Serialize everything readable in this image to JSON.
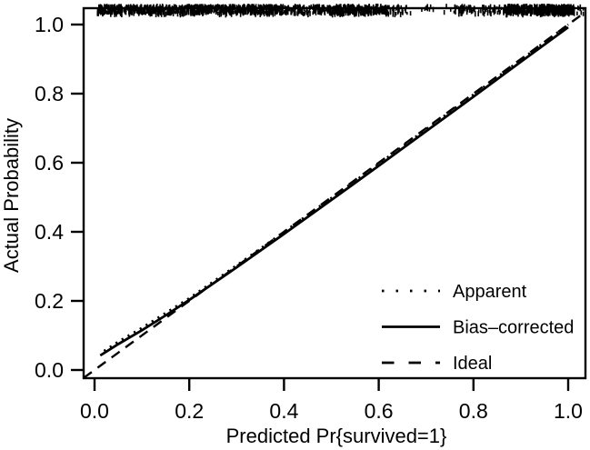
{
  "figure": {
    "background": "#ffffff",
    "ink_color": "#000000"
  },
  "chart_data": {
    "type": "line",
    "title": "",
    "xlabel": "Predicted Pr{survived=1}",
    "ylabel": "Actual Probability",
    "xlim": [
      0,
      1
    ],
    "ylim": [
      0,
      1
    ],
    "grid": false,
    "legend_position": "lower right",
    "x_ticks": [
      0.0,
      0.2,
      0.4,
      0.6,
      0.8,
      1.0
    ],
    "y_ticks": [
      0.0,
      0.2,
      0.4,
      0.6,
      0.8,
      1.0
    ],
    "x_tick_labels": [
      "0.0",
      "0.2",
      "0.4",
      "0.6",
      "0.8",
      "1.0"
    ],
    "y_tick_labels": [
      "0.0",
      "0.2",
      "0.4",
      "0.6",
      "0.8",
      "1.0"
    ],
    "series": [
      {
        "name": "Apparent",
        "style": "dotted",
        "points": [
          [
            0.02,
            0.055
          ],
          [
            0.05,
            0.082
          ],
          [
            0.1,
            0.122
          ],
          [
            0.15,
            0.165
          ],
          [
            0.2,
            0.208
          ],
          [
            0.3,
            0.303
          ],
          [
            0.4,
            0.4
          ],
          [
            0.5,
            0.498
          ],
          [
            0.6,
            0.597
          ],
          [
            0.7,
            0.697
          ],
          [
            0.8,
            0.797
          ],
          [
            0.9,
            0.898
          ],
          [
            1.0,
            1.0
          ]
        ]
      },
      {
        "name": "Bias–corrected",
        "style": "solid",
        "points": [
          [
            0.012,
            0.042
          ],
          [
            0.05,
            0.075
          ],
          [
            0.1,
            0.115
          ],
          [
            0.15,
            0.158
          ],
          [
            0.2,
            0.203
          ],
          [
            0.3,
            0.297
          ],
          [
            0.4,
            0.394
          ],
          [
            0.5,
            0.492
          ],
          [
            0.6,
            0.591
          ],
          [
            0.7,
            0.691
          ],
          [
            0.8,
            0.791
          ],
          [
            0.9,
            0.892
          ],
          [
            1.0,
            0.992
          ]
        ]
      },
      {
        "name": "Ideal",
        "style": "dashed",
        "points": [
          [
            -0.023,
            -0.023
          ],
          [
            1.036,
            1.036
          ]
        ]
      }
    ],
    "rug": {
      "description": "jittered tick marks along the top showing the distribution of predicted probabilities",
      "segments": [
        [
          0.006,
          0.184,
          350
        ],
        [
          0.184,
          0.376,
          420
        ],
        [
          0.376,
          0.463,
          120
        ],
        [
          0.463,
          0.626,
          330
        ],
        [
          0.626,
          0.66,
          25
        ],
        [
          0.66,
          0.76,
          14
        ],
        [
          0.76,
          0.821,
          45
        ],
        [
          0.821,
          0.867,
          35
        ],
        [
          0.867,
          1.013,
          450
        ],
        [
          1.017,
          1.033,
          8
        ]
      ]
    }
  }
}
